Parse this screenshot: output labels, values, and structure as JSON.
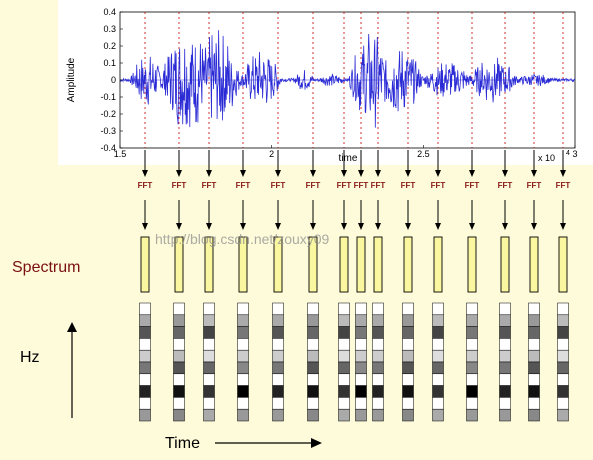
{
  "waveform": {
    "ylabel": "Amplitude",
    "xlabel": "time",
    "exponent_label": "x 10",
    "exponent_power": "4",
    "x_ticks": [
      "1.5",
      "2",
      "2.5",
      "3"
    ],
    "y_ticks": [
      "0.4",
      "0.3",
      "0.2",
      "0.1",
      "0",
      "-0.1",
      "-0.2",
      "-0.3",
      "-0.4"
    ],
    "xlim": [
      1.5,
      3.0
    ],
    "ylim": [
      -0.4,
      0.4
    ],
    "grid_x": true,
    "grid_y": false
  },
  "frames": {
    "count": 15,
    "fft_label": "FFT",
    "spectrum_label": "Spectrum",
    "spectrogram_cells_per_column": 10
  },
  "axes_labels": {
    "hz": "Hz",
    "time": "Time"
  },
  "watermark": "http://blog.csdn.net/zouxy09",
  "colors": {
    "background": "#fdfbd9",
    "wave": "#2b2bd6",
    "grid": "#cc0000",
    "fft_text": "#8b1a1a",
    "spectrum_fill": "#fbf7a0",
    "spectrum_label": "#7a1010"
  }
}
